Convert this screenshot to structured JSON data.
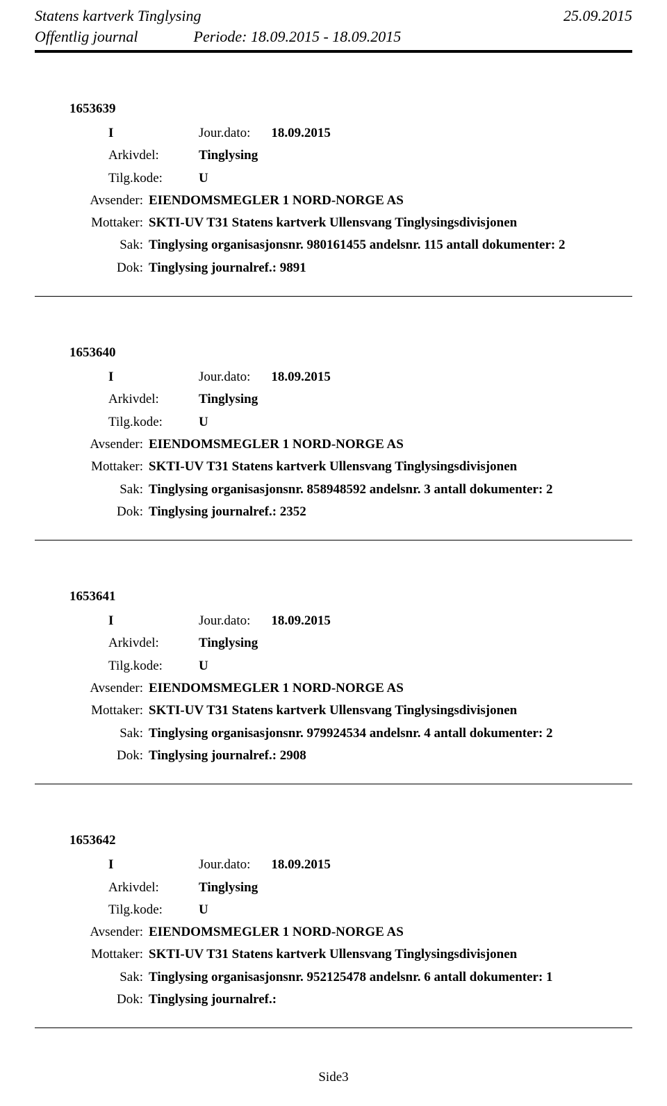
{
  "header": {
    "org": "Statens kartverk Tinglysing",
    "date": "25.09.2015",
    "title": "Offentlig journal",
    "period_label": "Periode:",
    "period": "18.09.2015 - 18.09.2015"
  },
  "labels": {
    "jourdato": "Jour.dato:",
    "arkivdel": "Arkivdel:",
    "tilgkode": "Tilg.kode:",
    "avsender": "Avsender:",
    "mottaker": "Mottaker:",
    "sak": "Sak:",
    "dok": "Dok:"
  },
  "entries": [
    {
      "recno": "1653639",
      "type": "I",
      "jourdato": "18.09.2015",
      "arkivdel": "Tinglysing",
      "tilgkode": "U",
      "avsender": "EIENDOMSMEGLER 1 NORD-NORGE AS",
      "mottaker": "SKTI-UV T31 Statens kartverk Ullensvang Tinglysingsdivisjonen",
      "sak": "Tinglysing organisasjonsnr. 980161455 andelsnr. 115 antall dokumenter: 2",
      "dok": "Tinglysing journalref.: 9891"
    },
    {
      "recno": "1653640",
      "type": "I",
      "jourdato": "18.09.2015",
      "arkivdel": "Tinglysing",
      "tilgkode": "U",
      "avsender": "EIENDOMSMEGLER 1 NORD-NORGE AS",
      "mottaker": "SKTI-UV T31 Statens kartverk Ullensvang Tinglysingsdivisjonen",
      "sak": "Tinglysing organisasjonsnr. 858948592 andelsnr. 3 antall dokumenter: 2",
      "dok": "Tinglysing journalref.: 2352"
    },
    {
      "recno": "1653641",
      "type": "I",
      "jourdato": "18.09.2015",
      "arkivdel": "Tinglysing",
      "tilgkode": "U",
      "avsender": "EIENDOMSMEGLER 1 NORD-NORGE AS",
      "mottaker": "SKTI-UV T31 Statens kartverk Ullensvang Tinglysingsdivisjonen",
      "sak": "Tinglysing organisasjonsnr. 979924534 andelsnr. 4 antall dokumenter: 2",
      "dok": "Tinglysing journalref.: 2908"
    },
    {
      "recno": "1653642",
      "type": "I",
      "jourdato": "18.09.2015",
      "arkivdel": "Tinglysing",
      "tilgkode": "U",
      "avsender": "EIENDOMSMEGLER 1 NORD-NORGE AS",
      "mottaker": "SKTI-UV T31 Statens kartverk Ullensvang Tinglysingsdivisjonen",
      "sak": "Tinglysing organisasjonsnr. 952125478 andelsnr. 6 antall dokumenter: 1",
      "dok": "Tinglysing journalref.:"
    }
  ],
  "footer": {
    "page": "Side3"
  }
}
